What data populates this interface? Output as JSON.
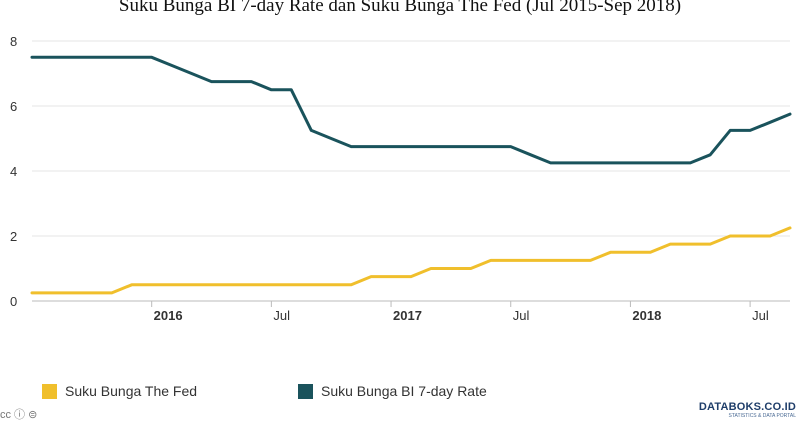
{
  "chart_data": {
    "type": "line",
    "title": "Suku Bunga BI 7-day Rate dan Suku Bunga The Fed (Jul 2015-Sep 2018)",
    "xlabel": "",
    "ylabel": "",
    "ylim": [
      0,
      8
    ],
    "yticks": [
      0,
      2,
      4,
      6,
      8
    ],
    "xlim": [
      "2015-07",
      "2018-09"
    ],
    "xticks": [
      {
        "label": "2016",
        "date": "2016-01",
        "bold": true
      },
      {
        "label": "Jul",
        "date": "2016-07",
        "bold": false
      },
      {
        "label": "2017",
        "date": "2017-01",
        "bold": true
      },
      {
        "label": "Jul",
        "date": "2017-07",
        "bold": false
      },
      {
        "label": "2018",
        "date": "2018-01",
        "bold": true
      },
      {
        "label": "Jul",
        "date": "2018-07",
        "bold": false
      }
    ],
    "grid": "horizontal",
    "legend_position": "bottom",
    "series": [
      {
        "name": "Suku Bunga BI 7-day Rate",
        "color": "#1a535c",
        "points": [
          [
            "2015-07",
            7.5
          ],
          [
            "2015-08",
            7.5
          ],
          [
            "2015-09",
            7.5
          ],
          [
            "2015-10",
            7.5
          ],
          [
            "2015-11",
            7.5
          ],
          [
            "2015-12",
            7.5
          ],
          [
            "2016-01",
            7.5
          ],
          [
            "2016-02",
            7.25
          ],
          [
            "2016-03",
            7.0
          ],
          [
            "2016-04",
            6.75
          ],
          [
            "2016-05",
            6.75
          ],
          [
            "2016-06",
            6.75
          ],
          [
            "2016-07",
            6.5
          ],
          [
            "2016-08",
            6.5
          ],
          [
            "2016-09",
            5.25
          ],
          [
            "2016-10",
            5.0
          ],
          [
            "2016-11",
            4.75
          ],
          [
            "2016-12",
            4.75
          ],
          [
            "2017-01",
            4.75
          ],
          [
            "2017-02",
            4.75
          ],
          [
            "2017-03",
            4.75
          ],
          [
            "2017-04",
            4.75
          ],
          [
            "2017-05",
            4.75
          ],
          [
            "2017-06",
            4.75
          ],
          [
            "2017-07",
            4.75
          ],
          [
            "2017-08",
            4.5
          ],
          [
            "2017-09",
            4.25
          ],
          [
            "2017-10",
            4.25
          ],
          [
            "2017-11",
            4.25
          ],
          [
            "2017-12",
            4.25
          ],
          [
            "2018-01",
            4.25
          ],
          [
            "2018-02",
            4.25
          ],
          [
            "2018-03",
            4.25
          ],
          [
            "2018-04",
            4.25
          ],
          [
            "2018-05",
            4.5
          ],
          [
            "2018-06",
            5.25
          ],
          [
            "2018-07",
            5.25
          ],
          [
            "2018-08",
            5.5
          ],
          [
            "2018-09",
            5.75
          ]
        ]
      },
      {
        "name": "Suku Bunga The Fed",
        "color": "#f0bf2c",
        "points": [
          [
            "2015-07",
            0.25
          ],
          [
            "2015-08",
            0.25
          ],
          [
            "2015-09",
            0.25
          ],
          [
            "2015-10",
            0.25
          ],
          [
            "2015-11",
            0.25
          ],
          [
            "2015-12",
            0.5
          ],
          [
            "2016-01",
            0.5
          ],
          [
            "2016-02",
            0.5
          ],
          [
            "2016-03",
            0.5
          ],
          [
            "2016-04",
            0.5
          ],
          [
            "2016-05",
            0.5
          ],
          [
            "2016-06",
            0.5
          ],
          [
            "2016-07",
            0.5
          ],
          [
            "2016-08",
            0.5
          ],
          [
            "2016-09",
            0.5
          ],
          [
            "2016-10",
            0.5
          ],
          [
            "2016-11",
            0.5
          ],
          [
            "2016-12",
            0.75
          ],
          [
            "2017-01",
            0.75
          ],
          [
            "2017-02",
            0.75
          ],
          [
            "2017-03",
            1.0
          ],
          [
            "2017-04",
            1.0
          ],
          [
            "2017-05",
            1.0
          ],
          [
            "2017-06",
            1.25
          ],
          [
            "2017-07",
            1.25
          ],
          [
            "2017-08",
            1.25
          ],
          [
            "2017-09",
            1.25
          ],
          [
            "2017-10",
            1.25
          ],
          [
            "2017-11",
            1.25
          ],
          [
            "2017-12",
            1.5
          ],
          [
            "2018-01",
            1.5
          ],
          [
            "2018-02",
            1.5
          ],
          [
            "2018-03",
            1.75
          ],
          [
            "2018-04",
            1.75
          ],
          [
            "2018-05",
            1.75
          ],
          [
            "2018-06",
            2.0
          ],
          [
            "2018-07",
            2.0
          ],
          [
            "2018-08",
            2.0
          ],
          [
            "2018-09",
            2.25
          ]
        ]
      }
    ]
  },
  "legend": [
    {
      "label": "Suku Bunga The Fed",
      "color": "#f0bf2c"
    },
    {
      "label": "Suku Bunga BI 7-day Rate",
      "color": "#1a535c"
    }
  ],
  "footer": {
    "license_text": "cc ⓘ ⊜",
    "brand": "DATABOKS.CO.ID",
    "brand_sub": "STATISTICS & DATA PORTAL"
  }
}
